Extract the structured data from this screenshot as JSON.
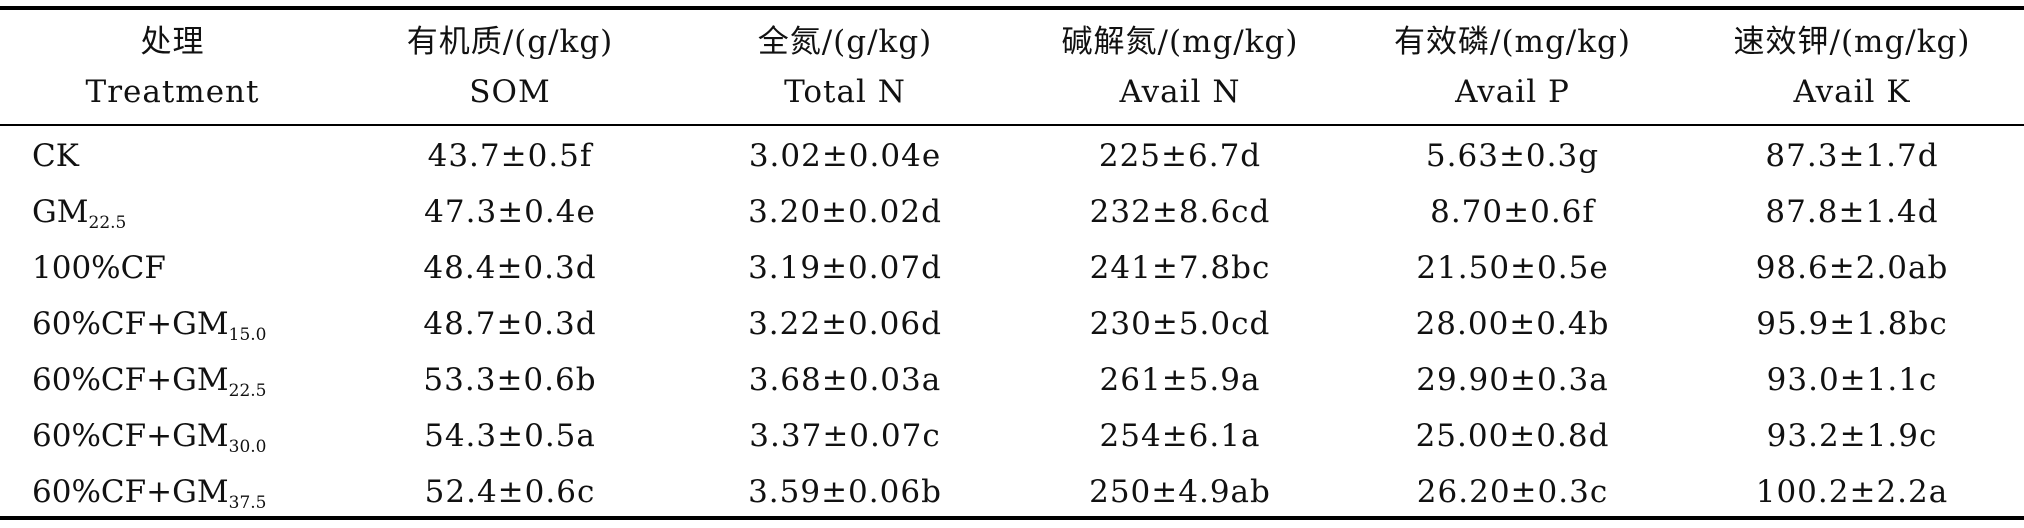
{
  "table": {
    "headers": [
      {
        "zh": "处理",
        "en": "Treatment"
      },
      {
        "zh": "有机质/(g/kg)",
        "en": "SOM"
      },
      {
        "zh": "全氮/(g/kg)",
        "en": "Total N"
      },
      {
        "zh": "碱解氮/(mg/kg)",
        "en": "Avail N"
      },
      {
        "zh": "有效磷/(mg/kg)",
        "en": "Avail P"
      },
      {
        "zh": "速效钾/(mg/kg)",
        "en": "Avail K"
      }
    ],
    "rows": [
      {
        "treatment": "CK",
        "sub": "",
        "som": "43.7±0.5f",
        "tn": "3.02±0.04e",
        "an": "225±6.7d",
        "ap": "5.63±0.3g",
        "ak": "87.3±1.7d"
      },
      {
        "treatment": "GM",
        "sub": "22.5",
        "som": "47.3±0.4e",
        "tn": "3.20±0.02d",
        "an": "232±8.6cd",
        "ap": "8.70±0.6f",
        "ak": "87.8±1.4d"
      },
      {
        "treatment": "100%CF",
        "sub": "",
        "som": "48.4±0.3d",
        "tn": "3.19±0.07d",
        "an": "241±7.8bc",
        "ap": "21.50±0.5e",
        "ak": "98.6±2.0ab"
      },
      {
        "treatment": "60%CF+GM",
        "sub": "15.0",
        "som": "48.7±0.3d",
        "tn": "3.22±0.06d",
        "an": "230±5.0cd",
        "ap": "28.00±0.4b",
        "ak": "95.9±1.8bc"
      },
      {
        "treatment": "60%CF+GM",
        "sub": "22.5",
        "som": "53.3±0.6b",
        "tn": "3.68±0.03a",
        "an": "261±5.9a",
        "ap": "29.90±0.3a",
        "ak": "93.0±1.1c"
      },
      {
        "treatment": "60%CF+GM",
        "sub": "30.0",
        "som": "54.3±0.5a",
        "tn": "3.37±0.07c",
        "an": "254±6.1a",
        "ap": "25.00±0.8d",
        "ak": "93.2±1.9c"
      },
      {
        "treatment": "60%CF+GM",
        "sub": "37.5",
        "som": "52.4±0.6c",
        "tn": "3.59±0.06b",
        "an": "250±4.9ab",
        "ap": "26.20±0.3c",
        "ak": "100.2±2.2a"
      }
    ]
  }
}
